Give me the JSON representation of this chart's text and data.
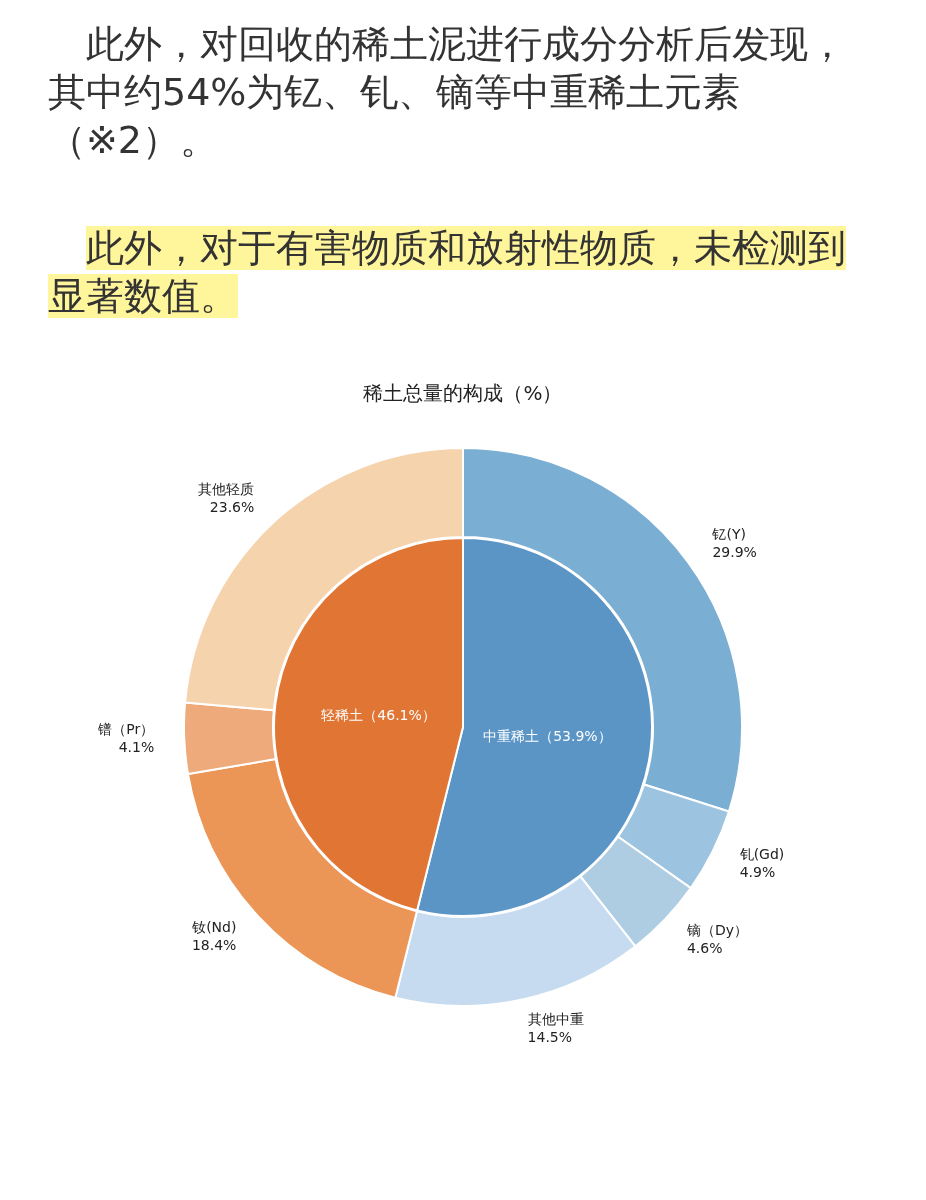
{
  "chart_data": [
    {
      "type": "donut",
      "title": "稀土总量的构成（%）",
      "annotations": [
        "此外，对回收的稀土泥进行成分分析后发现，其中约54%为钇、钆、镝等中重稀土元素（※2）。",
        "此外，对于有害物质和放射性物质，未检测到显著数值。"
      ],
      "categories": [
        "钇(Y)",
        "钆(Gd)",
        "镝（Dy）",
        "其他中重",
        "钕(Nd)",
        "镨（Pr）",
        "其他轻质"
      ],
      "values": [
        29.9,
        4.9,
        4.6,
        14.5,
        18.4,
        4.1,
        23.6
      ],
      "value_labels": [
        "29.9%",
        "4.9%",
        "4.6%",
        "14.5%",
        "18.4%",
        "4.1%",
        "23.6%"
      ],
      "colors": [
        "#7aaed3",
        "#9cc3e0",
        "#aecde3",
        "#c6dbef",
        "#eb9557",
        "#eeaa7a",
        "#f5d3ad"
      ]
    },
    {
      "type": "pie",
      "categories": [
        "中重稀土",
        "轻稀土"
      ],
      "values": [
        53.9,
        46.1
      ],
      "value_labels": [
        "（53.9%）",
        "（46.1%）"
      ],
      "colors": [
        "#5b95c5",
        "#e07534"
      ]
    }
  ]
}
